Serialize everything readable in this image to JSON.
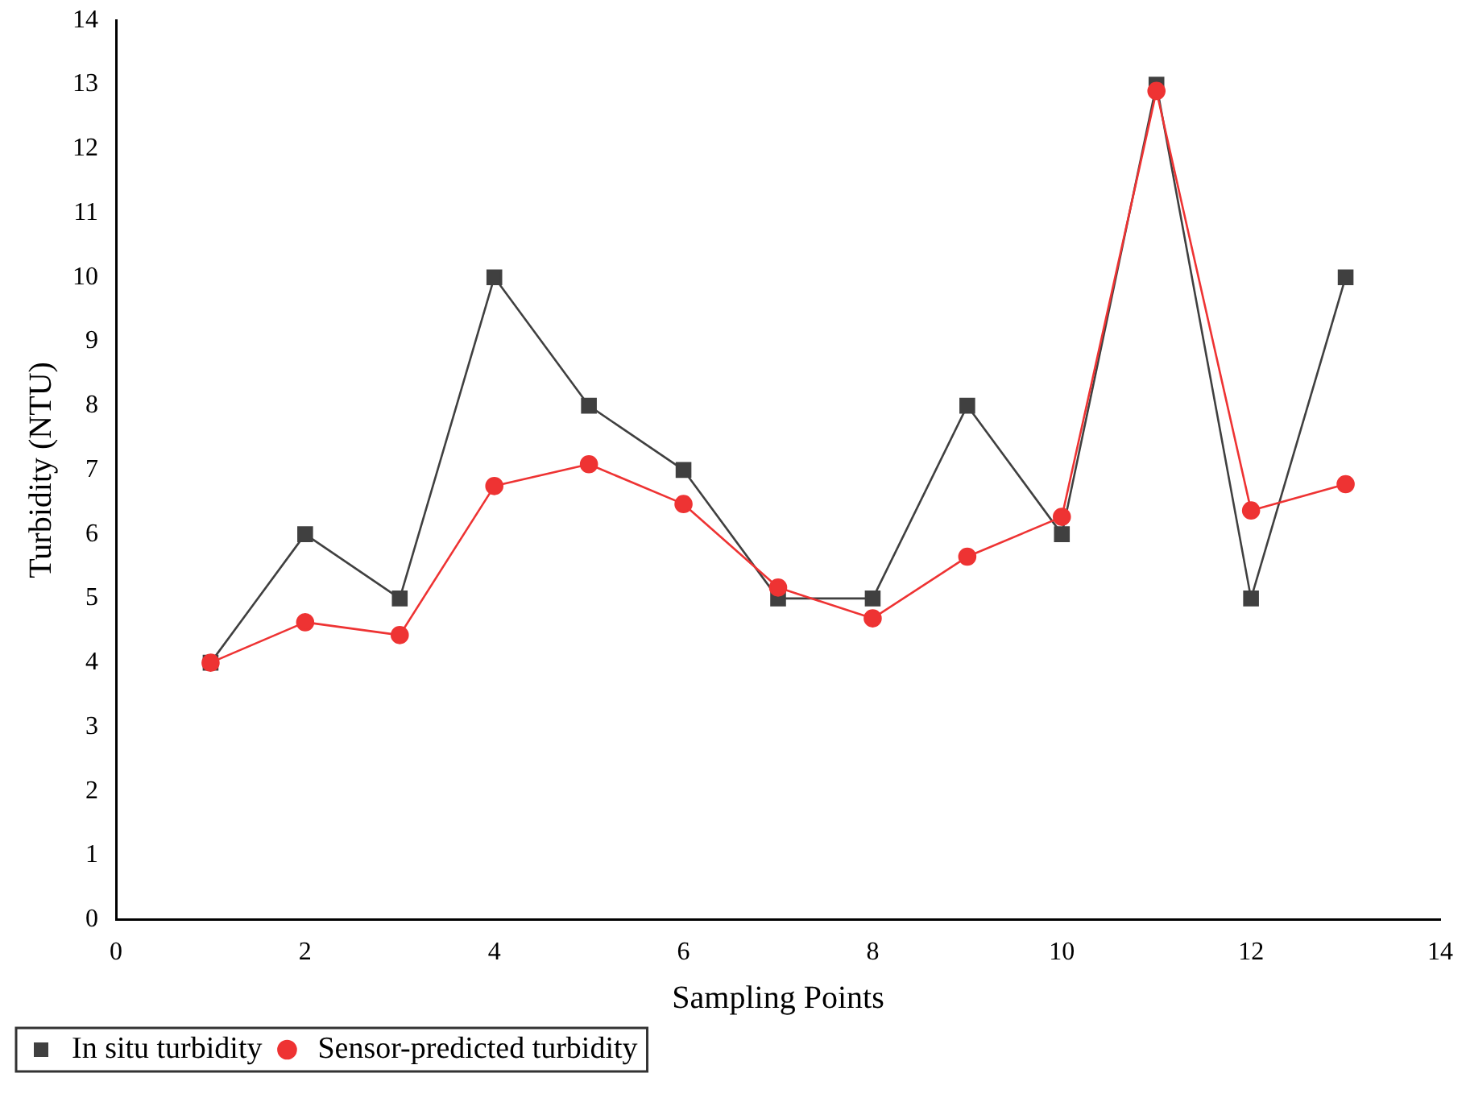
{
  "chart_data": {
    "type": "line",
    "xlabel": "Sampling Points",
    "ylabel": "Turbidity (NTU)",
    "x": [
      1,
      2,
      3,
      4,
      5,
      6,
      7,
      8,
      9,
      10,
      11,
      12,
      13
    ],
    "series": [
      {
        "name": "In situ turbidity",
        "color": "#404040",
        "marker": "square",
        "values": [
          4,
          6,
          5,
          10,
          8,
          7,
          5,
          5,
          8,
          6,
          13,
          5,
          10
        ]
      },
      {
        "name": "Sensor-predicted turbidity",
        "color": "#ee3333",
        "marker": "circle",
        "values": [
          4.0,
          4.63,
          4.43,
          6.75,
          7.09,
          6.47,
          5.17,
          4.69,
          5.65,
          6.27,
          12.9,
          6.37,
          6.78
        ]
      }
    ],
    "xlim": [
      0,
      14
    ],
    "xticks": [
      0,
      2,
      4,
      6,
      8,
      10,
      12,
      14
    ],
    "ylim": [
      0,
      14
    ],
    "yticks": [
      0,
      1,
      2,
      3,
      4,
      5,
      6,
      7,
      8,
      9,
      10,
      11,
      12,
      13,
      14
    ],
    "grid": false,
    "legend": "bottom left",
    "line_style": "solid"
  }
}
